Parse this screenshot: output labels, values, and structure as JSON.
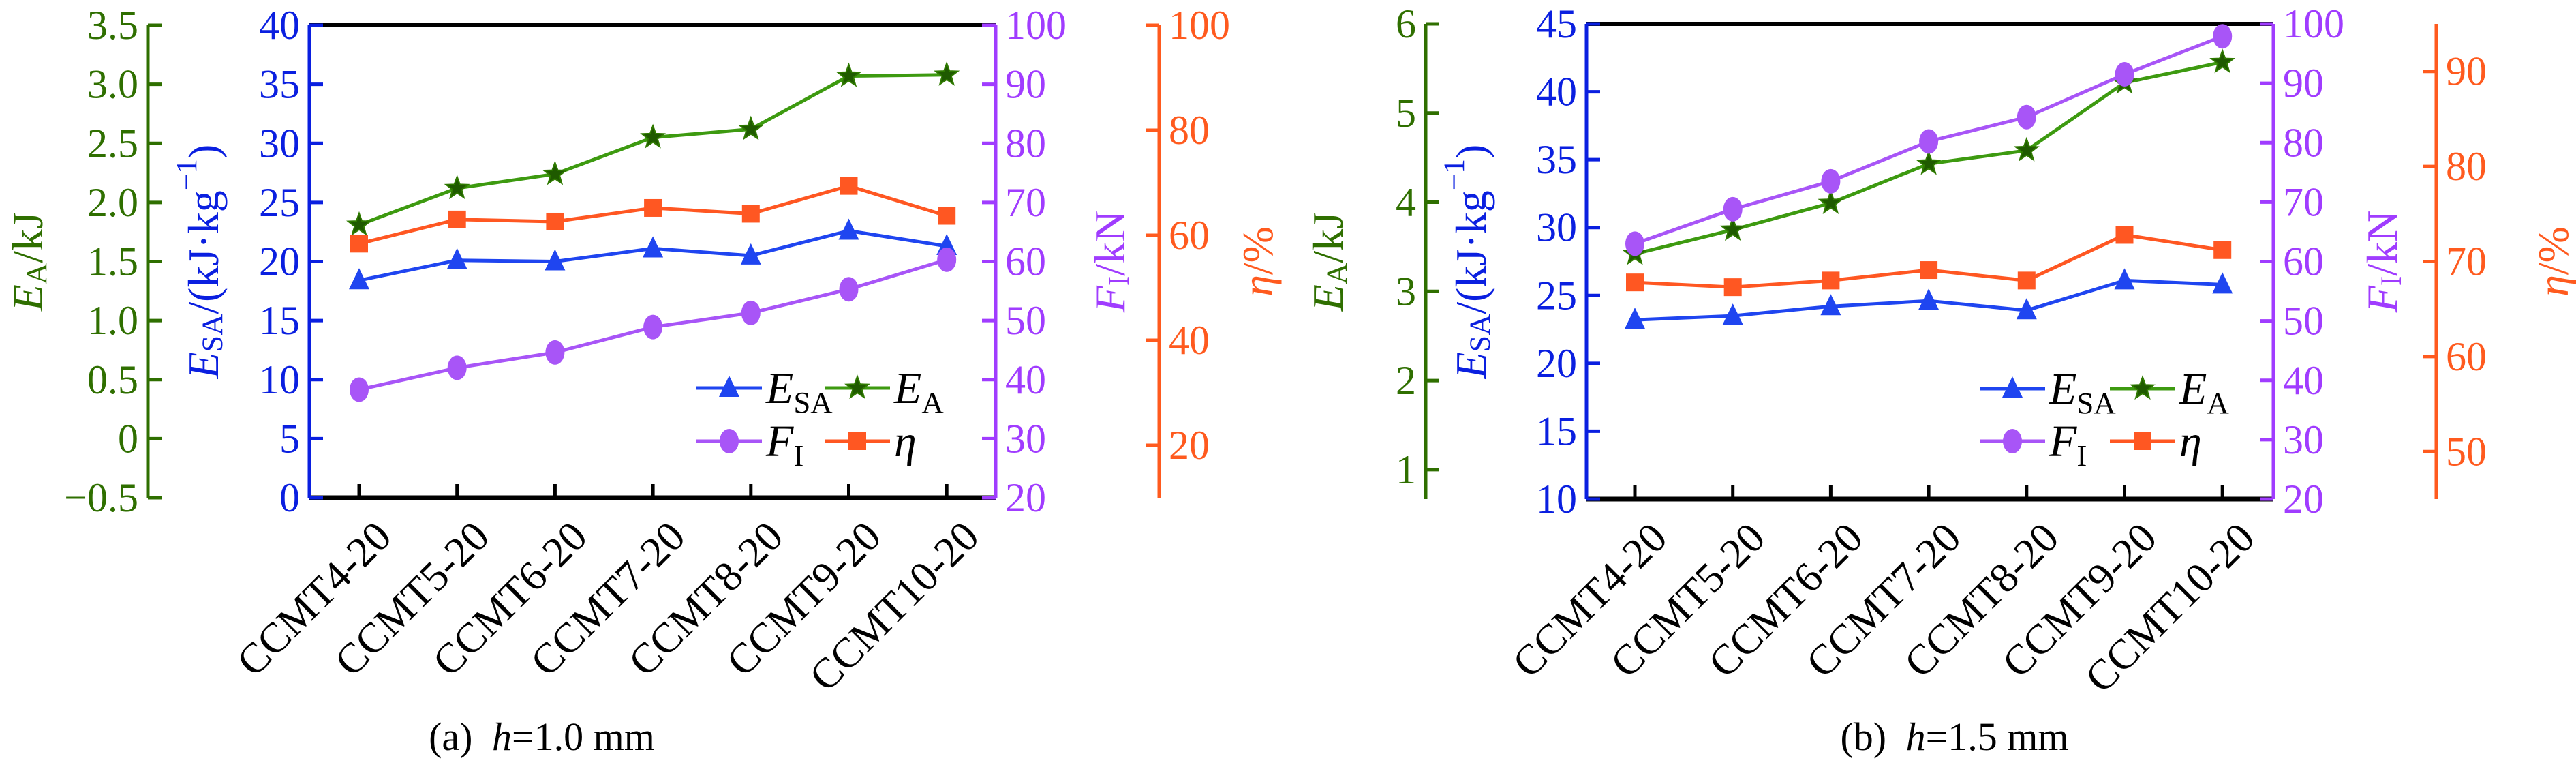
{
  "chart_data": [
    {
      "type": "line",
      "caption": {
        "prefix": "(a) ",
        "var": "h",
        "rest": "=1.0 mm"
      },
      "categories": [
        "CCMT4-20",
        "CCMT5-20",
        "CCMT6-20",
        "CCMT7-20",
        "CCMT8-20",
        "CCMT9-20",
        "CCMT10-20"
      ],
      "axes": [
        {
          "title": {
            "main": "E",
            "sub": "SA",
            "unit": "/(kJ·kg",
            "sup": "−1",
            "close": ")"
          },
          "color": "#0a1fe0",
          "ylim": [
            0,
            40
          ],
          "ticks": [
            0,
            5,
            10,
            15,
            20,
            25,
            30,
            35,
            40
          ],
          "tick_labels": [
            "0",
            "5",
            "10",
            "15",
            "20",
            "25",
            "30",
            "35",
            "40"
          ]
        },
        {
          "title": {
            "main": "E",
            "sub": "A",
            "unit": "/kJ"
          },
          "color": "#2f6f00",
          "ylim": [
            -0.5,
            3.5
          ],
          "ticks": [
            -0.5,
            0,
            0.5,
            1.0,
            1.5,
            2.0,
            2.5,
            3.0,
            3.5
          ],
          "tick_labels": [
            "−0.5",
            "0",
            "0.5",
            "1.0",
            "1.5",
            "2.0",
            "2.5",
            "3.0",
            "3.5"
          ]
        },
        {
          "title": {
            "main": "F",
            "sub": "I",
            "unit": "/kN"
          },
          "color": "#a03cff",
          "ylim": [
            20,
            100
          ],
          "ticks": [
            20,
            30,
            40,
            50,
            60,
            70,
            80,
            90,
            100
          ],
          "tick_labels": [
            "20",
            "30",
            "40",
            "50",
            "60",
            "70",
            "80",
            "90",
            "100"
          ]
        },
        {
          "title": {
            "main": "η",
            "unit": "/%"
          },
          "color": "#ff5a1e",
          "ylim": [
            10,
            100
          ],
          "ticks": [
            20,
            40,
            60,
            80,
            100
          ],
          "tick_labels": [
            "20",
            "40",
            "60",
            "80",
            "100"
          ]
        }
      ],
      "series": [
        {
          "legend": {
            "main": "E",
            "sub": "SA"
          },
          "marker": "triangle",
          "color": "#1f45f0",
          "values": [
            18.4,
            20.1,
            20.0,
            21.1,
            20.5,
            22.6,
            21.3
          ]
        },
        {
          "legend": {
            "main": "E",
            "sub": "A"
          },
          "marker": "star",
          "color": "#3d9a10",
          "values": [
            1.81,
            2.12,
            2.24,
            2.55,
            2.62,
            3.07,
            3.08
          ]
        },
        {
          "legend": {
            "main": "F",
            "sub": "I"
          },
          "marker": "circle",
          "color": "#a855f7",
          "values": [
            38.3,
            42.0,
            44.6,
            48.9,
            51.3,
            55.3,
            60.3
          ]
        },
        {
          "legend": {
            "main": "η"
          },
          "marker": "square",
          "color": "#ff5722",
          "values": [
            58.4,
            63.0,
            62.6,
            65.2,
            64.1,
            69.4,
            63.7
          ]
        }
      ],
      "legend_position": "bottom-right",
      "grid": false
    },
    {
      "type": "line",
      "caption": {
        "prefix": "(b) ",
        "var": "h",
        "rest": "=1.5 mm"
      },
      "categories": [
        "CCMT4-20",
        "CCMT5-20",
        "CCMT6-20",
        "CCMT7-20",
        "CCMT8-20",
        "CCMT9-20",
        "CCMT10-20"
      ],
      "axes": [
        {
          "title": {
            "main": "E",
            "sub": "SA",
            "unit": "/(kJ·kg",
            "sup": "−1",
            "close": ")"
          },
          "color": "#0a1fe0",
          "ylim": [
            10,
            45
          ],
          "ticks": [
            10,
            15,
            20,
            25,
            30,
            35,
            40,
            45
          ],
          "tick_labels": [
            "10",
            "15",
            "20",
            "25",
            "30",
            "35",
            "40",
            "45"
          ]
        },
        {
          "title": {
            "main": "E",
            "sub": "A",
            "unit": "/kJ"
          },
          "color": "#2f6f00",
          "ylim": [
            0.67,
            6
          ],
          "ticks": [
            1,
            2,
            3,
            4,
            5,
            6
          ],
          "tick_labels": [
            "1",
            "2",
            "3",
            "4",
            "5",
            "6"
          ]
        },
        {
          "title": {
            "main": "F",
            "sub": "I",
            "unit": "/kN"
          },
          "color": "#a03cff",
          "ylim": [
            20,
            100
          ],
          "ticks": [
            20,
            30,
            40,
            50,
            60,
            70,
            80,
            90,
            100
          ],
          "tick_labels": [
            "20",
            "30",
            "40",
            "50",
            "60",
            "70",
            "80",
            "90",
            "100"
          ]
        },
        {
          "title": {
            "main": "η",
            "unit": "/%"
          },
          "color": "#ff5a1e",
          "ylim": [
            45,
            95
          ],
          "ticks": [
            50,
            60,
            70,
            80,
            90
          ],
          "tick_labels": [
            "50",
            "60",
            "70",
            "80",
            "90"
          ]
        }
      ],
      "series": [
        {
          "legend": {
            "main": "E",
            "sub": "SA"
          },
          "marker": "triangle",
          "color": "#1f45f0",
          "values": [
            23.2,
            23.5,
            24.2,
            24.6,
            23.9,
            26.1,
            25.8
          ]
        },
        {
          "legend": {
            "main": "E",
            "sub": "A"
          },
          "marker": "star",
          "color": "#3d9a10",
          "values": [
            3.42,
            3.69,
            3.99,
            4.43,
            4.58,
            5.34,
            5.57
          ]
        },
        {
          "legend": {
            "main": "F",
            "sub": "I"
          },
          "marker": "circle",
          "color": "#a855f7",
          "values": [
            63.0,
            68.8,
            73.5,
            80.2,
            84.3,
            91.5,
            97.9
          ]
        },
        {
          "legend": {
            "main": "η"
          },
          "marker": "square",
          "color": "#ff5722",
          "values": [
            67.8,
            67.3,
            68.0,
            69.1,
            68.0,
            72.8,
            71.2
          ]
        }
      ],
      "legend_position": "bottom-right",
      "grid": false
    }
  ]
}
